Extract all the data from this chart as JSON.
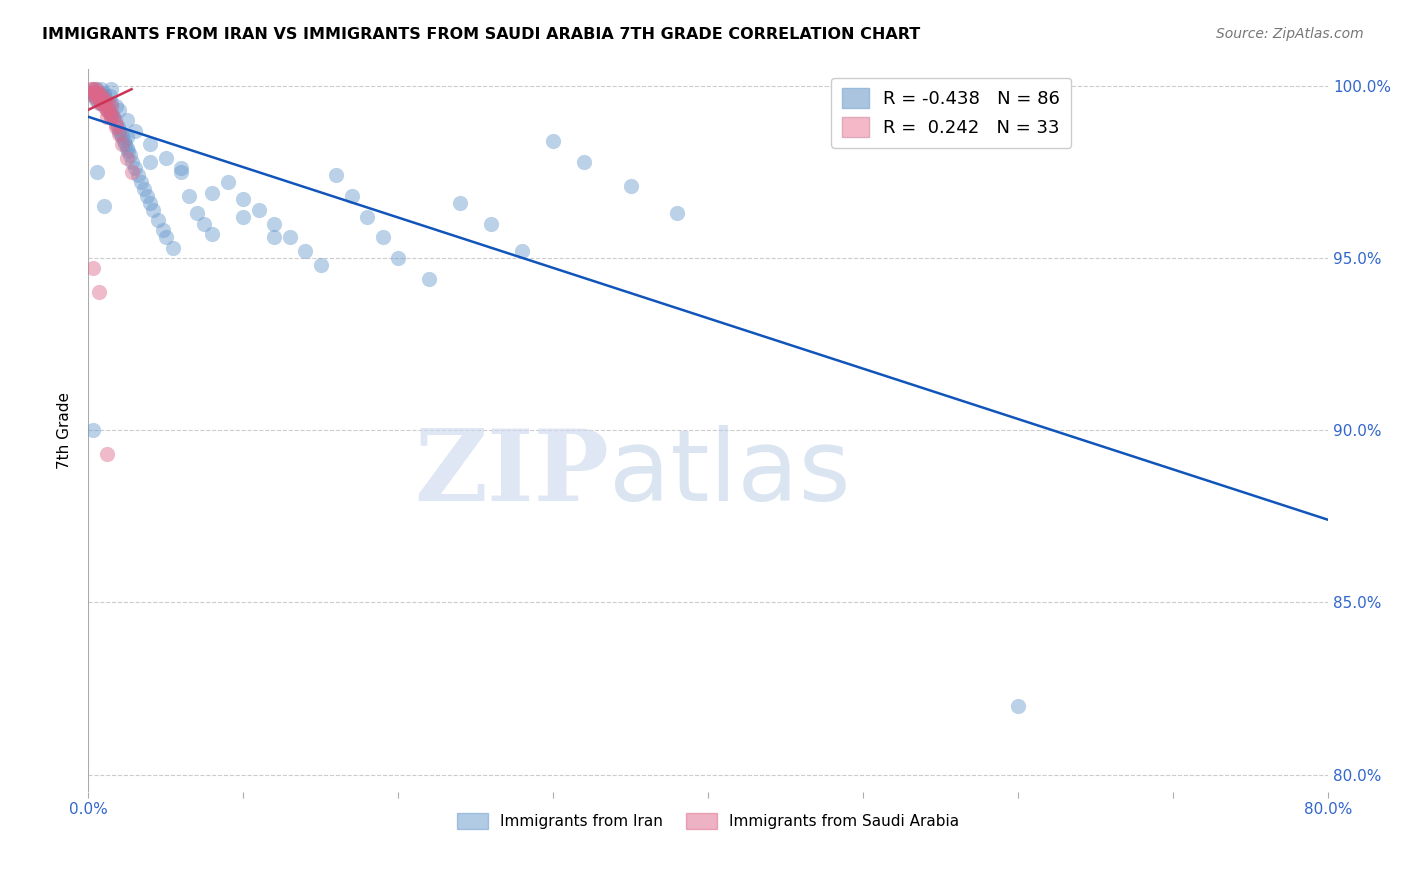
{
  "title": "IMMIGRANTS FROM IRAN VS IMMIGRANTS FROM SAUDI ARABIA 7TH GRADE CORRELATION CHART",
  "source": "Source: ZipAtlas.com",
  "ylabel": "7th Grade",
  "xlim": [
    0.0,
    0.8
  ],
  "ylim": [
    0.795,
    1.005
  ],
  "x_tick_positions": [
    0.0,
    0.1,
    0.2,
    0.3,
    0.4,
    0.5,
    0.6,
    0.7,
    0.8
  ],
  "x_tick_labels": [
    "0.0%",
    "",
    "",
    "",
    "",
    "",
    "",
    "",
    "80.0%"
  ],
  "y_tick_positions": [
    0.8,
    0.85,
    0.9,
    0.95,
    1.0
  ],
  "y_tick_labels": [
    "80.0%",
    "85.0%",
    "90.0%",
    "95.0%",
    "100.0%"
  ],
  "blue_color": "#6699cc",
  "pink_color": "#dd6688",
  "blue_line_color": "#1155bb",
  "pink_line_color": "#cc3355",
  "legend_blue_face": "#aac4e0",
  "legend_pink_face": "#f4b8c8",
  "blue_label_R": "R = -0.438",
  "blue_label_N": "N = 86",
  "pink_label_R": "R =  0.242",
  "pink_label_N": "N = 33",
  "bottom_label_blue": "Immigrants from Iran",
  "bottom_label_pink": "Immigrants from Saudi Arabia",
  "watermark_zip": "ZIP",
  "watermark_atlas": "atlas",
  "blue_scatter_x": [
    0.002,
    0.003,
    0.004,
    0.005,
    0.006,
    0.007,
    0.008,
    0.009,
    0.01,
    0.01,
    0.011,
    0.012,
    0.013,
    0.014,
    0.015,
    0.015,
    0.016,
    0.017,
    0.018,
    0.019,
    0.02,
    0.021,
    0.022,
    0.023,
    0.024,
    0.025,
    0.026,
    0.027,
    0.028,
    0.03,
    0.032,
    0.034,
    0.036,
    0.038,
    0.04,
    0.042,
    0.045,
    0.048,
    0.05,
    0.055,
    0.06,
    0.065,
    0.07,
    0.075,
    0.08,
    0.09,
    0.1,
    0.11,
    0.12,
    0.13,
    0.14,
    0.15,
    0.16,
    0.17,
    0.18,
    0.19,
    0.2,
    0.22,
    0.24,
    0.26,
    0.28,
    0.3,
    0.32,
    0.35,
    0.38,
    0.005,
    0.01,
    0.015,
    0.02,
    0.025,
    0.03,
    0.04,
    0.05,
    0.06,
    0.08,
    0.1,
    0.12,
    0.003,
    0.008,
    0.015,
    0.025,
    0.04,
    0.6,
    0.003,
    0.006,
    0.01
  ],
  "blue_scatter_y": [
    0.998,
    0.999,
    0.997,
    0.996,
    0.998,
    0.995,
    0.999,
    0.997,
    0.998,
    0.996,
    0.995,
    0.994,
    0.993,
    0.997,
    0.992,
    0.999,
    0.991,
    0.99,
    0.994,
    0.988,
    0.987,
    0.986,
    0.985,
    0.984,
    0.983,
    0.982,
    0.981,
    0.98,
    0.978,
    0.976,
    0.974,
    0.972,
    0.97,
    0.968,
    0.966,
    0.964,
    0.961,
    0.958,
    0.956,
    0.953,
    0.975,
    0.968,
    0.963,
    0.96,
    0.957,
    0.972,
    0.967,
    0.964,
    0.96,
    0.956,
    0.952,
    0.948,
    0.974,
    0.968,
    0.962,
    0.956,
    0.95,
    0.944,
    0.966,
    0.96,
    0.952,
    0.984,
    0.978,
    0.971,
    0.963,
    0.999,
    0.997,
    0.995,
    0.993,
    0.99,
    0.987,
    0.983,
    0.979,
    0.976,
    0.969,
    0.962,
    0.956,
    0.998,
    0.995,
    0.991,
    0.985,
    0.978,
    0.82,
    0.9,
    0.975,
    0.965
  ],
  "pink_scatter_x": [
    0.002,
    0.003,
    0.004,
    0.005,
    0.006,
    0.007,
    0.008,
    0.009,
    0.01,
    0.011,
    0.012,
    0.013,
    0.014,
    0.015,
    0.016,
    0.018,
    0.02,
    0.022,
    0.025,
    0.028,
    0.003,
    0.005,
    0.007,
    0.01,
    0.012,
    0.015,
    0.018,
    0.004,
    0.008,
    0.012,
    0.003,
    0.007,
    0.012
  ],
  "pink_scatter_y": [
    0.999,
    0.998,
    0.997,
    0.999,
    0.996,
    0.998,
    0.995,
    0.997,
    0.994,
    0.996,
    0.993,
    0.995,
    0.992,
    0.994,
    0.991,
    0.989,
    0.986,
    0.983,
    0.979,
    0.975,
    0.999,
    0.998,
    0.997,
    0.995,
    0.993,
    0.991,
    0.988,
    0.998,
    0.995,
    0.991,
    0.947,
    0.94,
    0.893
  ],
  "blue_trendline_x": [
    0.0,
    0.8
  ],
  "blue_trendline_y": [
    0.991,
    0.874
  ],
  "pink_trendline_x": [
    0.0,
    0.028
  ],
  "pink_trendline_y": [
    0.993,
    0.999
  ]
}
